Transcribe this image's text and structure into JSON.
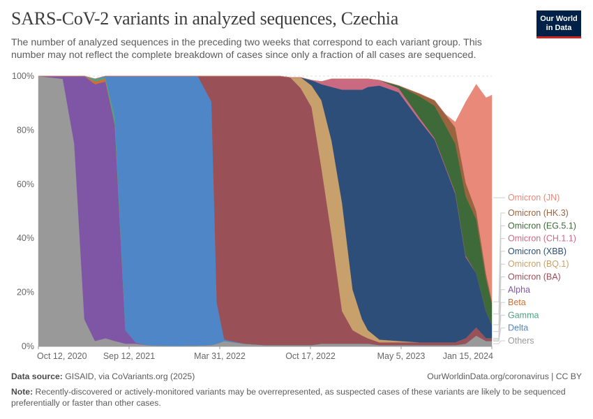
{
  "header": {
    "title": "SARS-CoV-2 variants in analyzed sequences, Czechia",
    "subtitle": "The number of analyzed sequences in the preceding two weeks that correspond to each variant group. This number may not reflect the complete breakdown of cases since only a fraction of all cases are sequenced.",
    "logo_line1": "Our World",
    "logo_line2": "in Data"
  },
  "footer": {
    "source_label": "Data source:",
    "source_text": " GISAID, via CoVariants.org (2025)",
    "link_text": "OurWorldinData.org/coronavirus | CC BY",
    "note_label": "Note:",
    "note_text": " Recently-discovered or actively-monitored variants may be overrepresented, as suspected cases of these variants are likely to be sequenced preferentially or faster than other cases."
  },
  "chart_data": {
    "type": "area",
    "stacked": true,
    "unit": "percent",
    "ylim": [
      0,
      100
    ],
    "yticks": [
      "0%",
      "20%",
      "40%",
      "60%",
      "80%",
      "100%"
    ],
    "xlabels": [
      "Oct 12, 2020",
      "Sep 12, 2021",
      "Mar 31, 2022",
      "Oct 17, 2022",
      "May 5, 2023",
      "Jan 15, 2024"
    ],
    "grid": true,
    "legend_placement": "right",
    "x": [
      "2020-08-01",
      "2020-10-12",
      "2020-11-15",
      "2020-12-15",
      "2021-01-15",
      "2021-02-15",
      "2021-03-15",
      "2021-04-15",
      "2021-05-15",
      "2021-06-15",
      "2021-07-15",
      "2021-09-12",
      "2021-11-15",
      "2021-12-25",
      "2022-01-10",
      "2022-02-01",
      "2022-03-31",
      "2022-06-01",
      "2022-07-15",
      "2022-08-15",
      "2022-09-15",
      "2022-10-17",
      "2022-11-15",
      "2022-12-15",
      "2023-01-15",
      "2023-02-15",
      "2023-03-15",
      "2023-04-01",
      "2023-05-05",
      "2023-07-01",
      "2023-09-01",
      "2023-10-15",
      "2023-11-15",
      "2023-12-15",
      "2024-01-15",
      "2024-02-15",
      "2024-03-15",
      "2024-04-01"
    ],
    "series": [
      {
        "name": "Others",
        "color": "#999999",
        "values": [
          100,
          99,
          75,
          10,
          2,
          3,
          2,
          1,
          1,
          0.5,
          0.3,
          0.2,
          0.3,
          0.5,
          1,
          2,
          1,
          0.5,
          0.5,
          0.5,
          0.5,
          0.5,
          1,
          1,
          1,
          1,
          1,
          1,
          0.5,
          0.5,
          0.5,
          0.5,
          0.5,
          0.5,
          1,
          4,
          2,
          2
        ]
      },
      {
        "name": "Alpha",
        "color": "#7e56a5",
        "values": [
          0,
          1,
          25,
          90,
          95,
          95,
          80,
          5,
          0.5,
          0,
          0,
          0,
          0,
          0,
          0,
          0,
          0,
          0,
          0,
          0,
          0,
          0,
          0,
          0,
          0,
          0,
          0,
          0,
          0,
          0,
          0,
          0,
          0,
          0,
          0,
          0,
          0,
          0
        ]
      },
      {
        "name": "Beta",
        "color": "#d06e35",
        "values": [
          0,
          0,
          0,
          0,
          1,
          1,
          0,
          0,
          0,
          0,
          0,
          0,
          0,
          0,
          0,
          0,
          0,
          0,
          0,
          0,
          0,
          0,
          0,
          0,
          0,
          0,
          0,
          0,
          0,
          0,
          0,
          0,
          0,
          0,
          0,
          0,
          0,
          0
        ]
      },
      {
        "name": "Gamma",
        "color": "#4fa381",
        "values": [
          0,
          0,
          0,
          0,
          1,
          0.5,
          3,
          0,
          0,
          0,
          0,
          0,
          0,
          0,
          0,
          0,
          0,
          0,
          0,
          0,
          0,
          0,
          0,
          0,
          0,
          0,
          0,
          0,
          0,
          0,
          0,
          0,
          0,
          0,
          0,
          0,
          0,
          0
        ]
      },
      {
        "name": "Delta",
        "color": "#4f86c8",
        "values": [
          0,
          0,
          0,
          0,
          0,
          0.5,
          15,
          94,
          98.5,
          99.5,
          99.7,
          99.8,
          99.7,
          90,
          15,
          0.5,
          0,
          0,
          0,
          0,
          0,
          0,
          0,
          0,
          0,
          0,
          0,
          0,
          0,
          0,
          0,
          0,
          0,
          0,
          0,
          0,
          0,
          0
        ]
      },
      {
        "name": "Omicron (BA)",
        "color": "#9a5057",
        "values": [
          0,
          0,
          0,
          0,
          0,
          0,
          0,
          0,
          0,
          0,
          0,
          0,
          0,
          9.5,
          84,
          97.5,
          99,
          99.5,
          99.5,
          99,
          95,
          88,
          65,
          40,
          12,
          5,
          3,
          2,
          1,
          1,
          1,
          1,
          1,
          1,
          2,
          3,
          1,
          1
        ]
      },
      {
        "name": "Omicron (BQ.1)",
        "color": "#c8a06c",
        "values": [
          0,
          0,
          0,
          0,
          0,
          0,
          0,
          0,
          0,
          0,
          0,
          0,
          0,
          0,
          0,
          0,
          0,
          0,
          0,
          0,
          4,
          8,
          25,
          35,
          40,
          15,
          6,
          3,
          1,
          0.5,
          0,
          0,
          0,
          0,
          0,
          0,
          0,
          0
        ]
      },
      {
        "name": "Omicron (XBB)",
        "color": "#2d4e79",
        "values": [
          0,
          0,
          0,
          0,
          0,
          0,
          0,
          0,
          0,
          0,
          0,
          0,
          0,
          0,
          0,
          0,
          0,
          0,
          0,
          0,
          0,
          2,
          6,
          20,
          42,
          74,
          85,
          90,
          94,
          92,
          82,
          75,
          65,
          55,
          30,
          20,
          10,
          5
        ]
      },
      {
        "name": "Omicron (CH.1.1)",
        "color": "#c96a82",
        "values": [
          0,
          0,
          0,
          0,
          0,
          0,
          0,
          0,
          0,
          0,
          0,
          0,
          0,
          0,
          0,
          0,
          0,
          0,
          0,
          0,
          0,
          0,
          1,
          3,
          4,
          4,
          4,
          3,
          2,
          1.5,
          1,
          0.5,
          0.5,
          0.5,
          0.5,
          0,
          0,
          0
        ]
      },
      {
        "name": "Omicron (EG.5.1)",
        "color": "#3e6a3a",
        "values": [
          0,
          0,
          0,
          0,
          0,
          0,
          0,
          0,
          0,
          0,
          0,
          0,
          0,
          0,
          0,
          0,
          0,
          0,
          0,
          0,
          0,
          0,
          0,
          0,
          0,
          0,
          0,
          0,
          0,
          1,
          8,
          12,
          15,
          18,
          22,
          20,
          12,
          8
        ]
      },
      {
        "name": "Omicron (HK.3)",
        "color": "#9a6440",
        "values": [
          0,
          0,
          0,
          0,
          0,
          0,
          0,
          0,
          0,
          0,
          0,
          0,
          0,
          0,
          0,
          0,
          0,
          0,
          0,
          0,
          0,
          0,
          0,
          0,
          0,
          0,
          0,
          0,
          0,
          0,
          1,
          2,
          4,
          6,
          5,
          3,
          2,
          1
        ]
      },
      {
        "name": "Omicron (JN)",
        "color": "#e8897a",
        "values": [
          0,
          0,
          0,
          0,
          0,
          0,
          0,
          0,
          0,
          0,
          0,
          0,
          0,
          0,
          0,
          0,
          0,
          0,
          0,
          0,
          0,
          0,
          0,
          0,
          0,
          0,
          0,
          0,
          0,
          0,
          0,
          0,
          0,
          2,
          30,
          47,
          65,
          76
        ]
      }
    ]
  }
}
